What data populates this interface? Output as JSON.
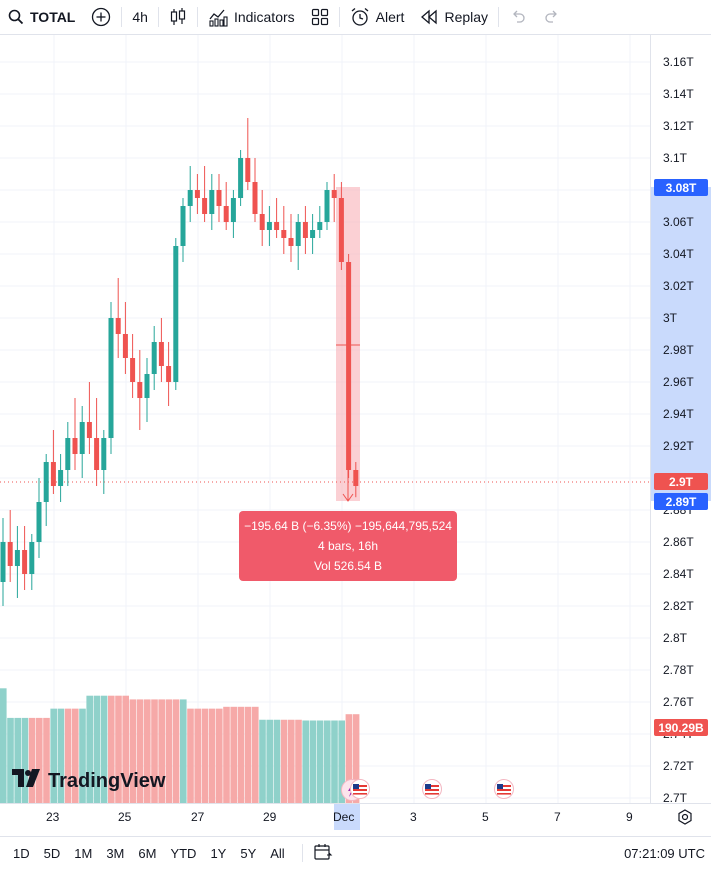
{
  "toolbar": {
    "symbol": "TOTAL",
    "interval": "4h",
    "indicators_label": "Indicators",
    "alert_label": "Alert",
    "replay_label": "Replay"
  },
  "colors": {
    "up": "#26a69a",
    "down": "#ef5350",
    "accent_blue": "#2962ff",
    "measure_fill": "#f05a6a"
  },
  "price_axis": {
    "ticks": [
      "3.16T",
      "3.14T",
      "3.12T",
      "3.1T",
      "3.08T",
      "3.06T",
      "3.04T",
      "3.02T",
      "3T",
      "2.98T",
      "2.96T",
      "2.94T",
      "2.92T",
      "2.9T",
      "2.88T",
      "2.86T",
      "2.84T",
      "2.82T",
      "2.8T",
      "2.78T",
      "2.76T",
      "2.74T",
      "2.72T",
      "2.7T"
    ],
    "current_price_tag": "2.9T",
    "range_high_tag": "3.08T",
    "range_low_tag": "2.89T",
    "volume_tag": "190.29B"
  },
  "time_axis": {
    "labels": [
      "23",
      "25",
      "27",
      "29",
      "Dec",
      "3",
      "5",
      "7",
      "9"
    ]
  },
  "measure": {
    "line1": "−195.64 B (−6.35%) −195,644,795,524",
    "line2": "4 bars, 16h",
    "line3": "Vol 526.54 B"
  },
  "logo_text": "TradingView",
  "bottom_bar": {
    "ranges": [
      "1D",
      "5D",
      "1M",
      "3M",
      "6M",
      "YTD",
      "1Y",
      "5Y",
      "All"
    ],
    "time": "07:21:09 UTC"
  },
  "chart_data": {
    "type": "candlestick",
    "y_unit": "T",
    "ylim": [
      2.7,
      3.17
    ],
    "candles": [
      {
        "o": 2.835,
        "h": 2.875,
        "l": 2.82,
        "c": 2.86
      },
      {
        "o": 2.86,
        "h": 2.88,
        "l": 2.835,
        "c": 2.845
      },
      {
        "o": 2.845,
        "h": 2.87,
        "l": 2.825,
        "c": 2.855
      },
      {
        "o": 2.855,
        "h": 2.87,
        "l": 2.83,
        "c": 2.84
      },
      {
        "o": 2.84,
        "h": 2.865,
        "l": 2.83,
        "c": 2.86
      },
      {
        "o": 2.86,
        "h": 2.9,
        "l": 2.85,
        "c": 2.885
      },
      {
        "o": 2.885,
        "h": 2.915,
        "l": 2.87,
        "c": 2.91
      },
      {
        "o": 2.91,
        "h": 2.93,
        "l": 2.89,
        "c": 2.895
      },
      {
        "o": 2.895,
        "h": 2.915,
        "l": 2.885,
        "c": 2.905
      },
      {
        "o": 2.905,
        "h": 2.935,
        "l": 2.895,
        "c": 2.925
      },
      {
        "o": 2.925,
        "h": 2.95,
        "l": 2.905,
        "c": 2.915
      },
      {
        "o": 2.915,
        "h": 2.945,
        "l": 2.9,
        "c": 2.935
      },
      {
        "o": 2.935,
        "h": 2.96,
        "l": 2.915,
        "c": 2.925
      },
      {
        "o": 2.925,
        "h": 2.95,
        "l": 2.895,
        "c": 2.905
      },
      {
        "o": 2.905,
        "h": 2.93,
        "l": 2.89,
        "c": 2.925
      },
      {
        "o": 2.925,
        "h": 3.01,
        "l": 2.915,
        "c": 3.0
      },
      {
        "o": 3.0,
        "h": 3.025,
        "l": 2.975,
        "c": 2.99
      },
      {
        "o": 2.99,
        "h": 3.01,
        "l": 2.965,
        "c": 2.975
      },
      {
        "o": 2.975,
        "h": 2.99,
        "l": 2.95,
        "c": 2.96
      },
      {
        "o": 2.96,
        "h": 2.98,
        "l": 2.93,
        "c": 2.95
      },
      {
        "o": 2.95,
        "h": 2.975,
        "l": 2.935,
        "c": 2.965
      },
      {
        "o": 2.965,
        "h": 2.995,
        "l": 2.955,
        "c": 2.985
      },
      {
        "o": 2.985,
        "h": 3.0,
        "l": 2.96,
        "c": 2.97
      },
      {
        "o": 2.97,
        "h": 2.985,
        "l": 2.945,
        "c": 2.96
      },
      {
        "o": 2.96,
        "h": 3.05,
        "l": 2.955,
        "c": 3.045
      },
      {
        "o": 3.045,
        "h": 3.075,
        "l": 3.035,
        "c": 3.07
      },
      {
        "o": 3.07,
        "h": 3.095,
        "l": 3.06,
        "c": 3.08
      },
      {
        "o": 3.08,
        "h": 3.09,
        "l": 3.065,
        "c": 3.075
      },
      {
        "o": 3.075,
        "h": 3.095,
        "l": 3.06,
        "c": 3.065
      },
      {
        "o": 3.065,
        "h": 3.09,
        "l": 3.055,
        "c": 3.08
      },
      {
        "o": 3.08,
        "h": 3.09,
        "l": 3.06,
        "c": 3.07
      },
      {
        "o": 3.07,
        "h": 3.085,
        "l": 3.055,
        "c": 3.06
      },
      {
        "o": 3.06,
        "h": 3.08,
        "l": 3.05,
        "c": 3.075
      },
      {
        "o": 3.075,
        "h": 3.105,
        "l": 3.07,
        "c": 3.1
      },
      {
        "o": 3.1,
        "h": 3.125,
        "l": 3.08,
        "c": 3.085
      },
      {
        "o": 3.085,
        "h": 3.1,
        "l": 3.06,
        "c": 3.065
      },
      {
        "o": 3.065,
        "h": 3.08,
        "l": 3.045,
        "c": 3.055
      },
      {
        "o": 3.055,
        "h": 3.07,
        "l": 3.045,
        "c": 3.06
      },
      {
        "o": 3.06,
        "h": 3.075,
        "l": 3.05,
        "c": 3.055
      },
      {
        "o": 3.055,
        "h": 3.07,
        "l": 3.04,
        "c": 3.05
      },
      {
        "o": 3.05,
        "h": 3.065,
        "l": 3.035,
        "c": 3.045
      },
      {
        "o": 3.045,
        "h": 3.065,
        "l": 3.03,
        "c": 3.06
      },
      {
        "o": 3.06,
        "h": 3.07,
        "l": 3.04,
        "c": 3.05
      },
      {
        "o": 3.05,
        "h": 3.065,
        "l": 3.04,
        "c": 3.055
      },
      {
        "o": 3.055,
        "h": 3.07,
        "l": 3.05,
        "c": 3.06
      },
      {
        "o": 3.06,
        "h": 3.085,
        "l": 3.055,
        "c": 3.08
      },
      {
        "o": 3.08,
        "h": 3.09,
        "l": 3.06,
        "c": 3.075
      },
      {
        "o": 3.075,
        "h": 3.085,
        "l": 3.03,
        "c": 3.035
      },
      {
        "o": 3.035,
        "h": 3.04,
        "l": 2.9,
        "c": 2.905
      },
      {
        "o": 2.905,
        "h": 2.91,
        "l": 2.888,
        "c": 2.895
      }
    ],
    "volume": {
      "unit": "B",
      "bars": [
        {
          "v": 310,
          "up": true
        },
        {
          "v": 230,
          "up": true
        },
        {
          "v": 230,
          "up": true
        },
        {
          "v": 230,
          "up": true
        },
        {
          "v": 230,
          "up": false
        },
        {
          "v": 230,
          "up": false
        },
        {
          "v": 230,
          "up": false
        },
        {
          "v": 255,
          "up": true
        },
        {
          "v": 255,
          "up": true
        },
        {
          "v": 255,
          "up": false
        },
        {
          "v": 255,
          "up": false
        },
        {
          "v": 255,
          "up": true
        },
        {
          "v": 290,
          "up": true
        },
        {
          "v": 290,
          "up": true
        },
        {
          "v": 290,
          "up": true
        },
        {
          "v": 290,
          "up": false
        },
        {
          "v": 290,
          "up": false
        },
        {
          "v": 290,
          "up": false
        },
        {
          "v": 280,
          "up": false
        },
        {
          "v": 280,
          "up": false
        },
        {
          "v": 280,
          "up": false
        },
        {
          "v": 280,
          "up": false
        },
        {
          "v": 280,
          "up": false
        },
        {
          "v": 280,
          "up": false
        },
        {
          "v": 280,
          "up": false
        },
        {
          "v": 280,
          "up": true
        },
        {
          "v": 255,
          "up": false
        },
        {
          "v": 255,
          "up": false
        },
        {
          "v": 255,
          "up": false
        },
        {
          "v": 255,
          "up": false
        },
        {
          "v": 255,
          "up": false
        },
        {
          "v": 260,
          "up": false
        },
        {
          "v": 260,
          "up": false
        },
        {
          "v": 260,
          "up": false
        },
        {
          "v": 260,
          "up": false
        },
        {
          "v": 260,
          "up": false
        },
        {
          "v": 225,
          "up": true
        },
        {
          "v": 225,
          "up": true
        },
        {
          "v": 225,
          "up": true
        },
        {
          "v": 225,
          "up": false
        },
        {
          "v": 225,
          "up": false
        },
        {
          "v": 225,
          "up": false
        },
        {
          "v": 223,
          "up": true
        },
        {
          "v": 223,
          "up": true
        },
        {
          "v": 223,
          "up": true
        },
        {
          "v": 223,
          "up": true
        },
        {
          "v": 223,
          "up": true
        },
        {
          "v": 223,
          "up": true
        },
        {
          "v": 240,
          "up": false
        },
        {
          "v": 240,
          "up": false
        }
      ]
    }
  }
}
